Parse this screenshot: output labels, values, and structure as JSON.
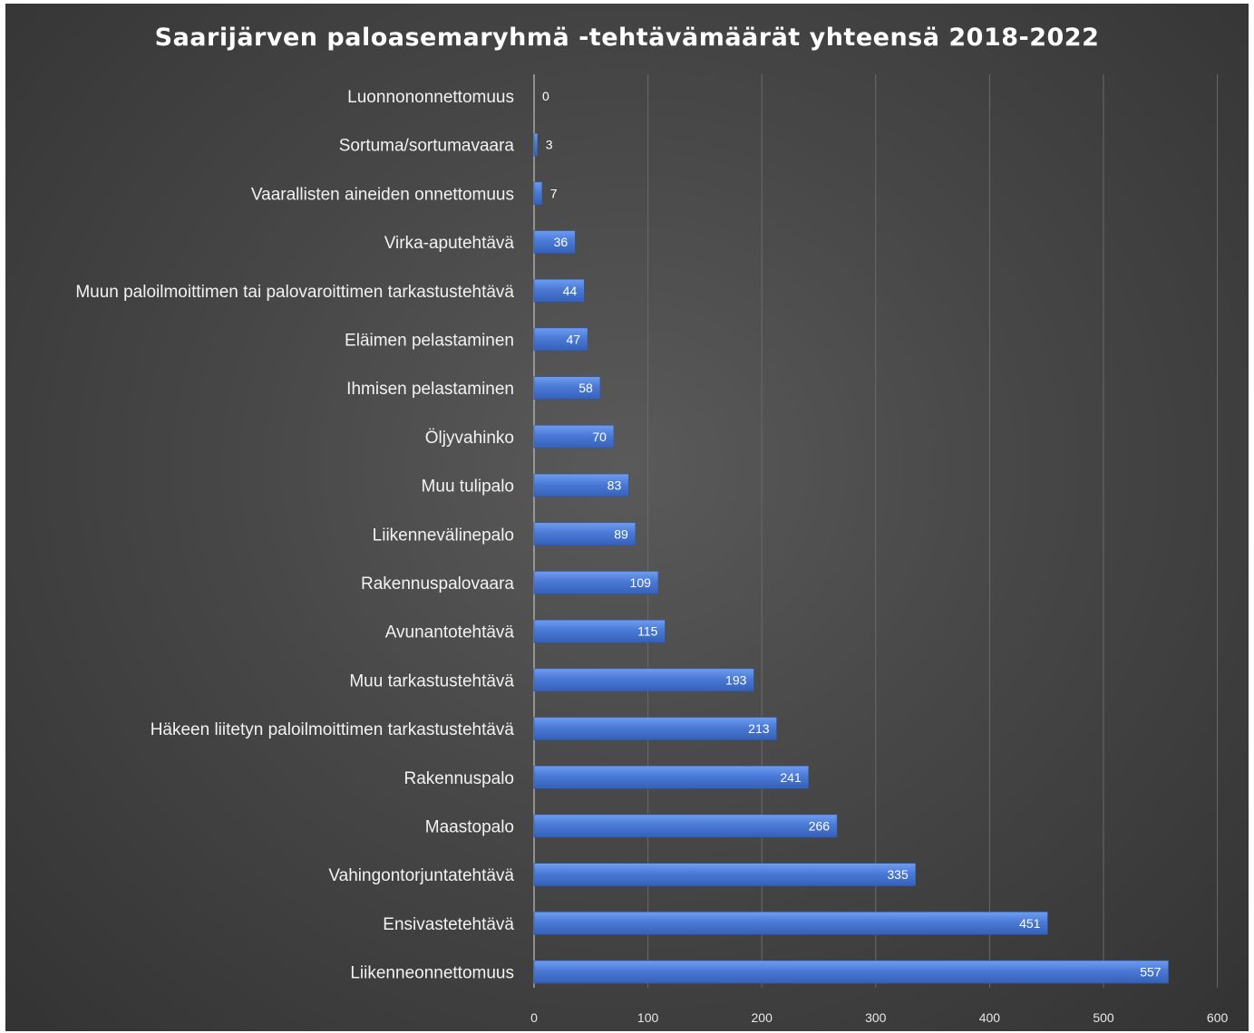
{
  "chart_data": {
    "type": "bar",
    "orientation": "horizontal",
    "title": "Saarijärven paloasemaryhmä -tehtävämäärät yhteensä 2018-2022",
    "categories": [
      "Luonnononnettomuus",
      "Sortuma/sortumavaara",
      "Vaarallisten aineiden onnettomuus",
      "Virka-aputehtävä",
      "Muun paloilmoittimen tai palovaroittimen tarkastustehtävä",
      "Eläimen pelastaminen",
      "Ihmisen pelastaminen",
      "Öljyvahinko",
      "Muu tulipalo",
      "Liikennevälinepalo",
      "Rakennuspalovaara",
      "Avunantotehtävä",
      "Muu tarkastustehtävä",
      "Häkeen liitetyn paloilmoittimen tarkastustehtävä",
      "Rakennuspalo",
      "Maastopalo",
      "Vahingontorjuntatehtävä",
      "Ensivastetehtävä",
      "Liikenneonnettomuus"
    ],
    "values": [
      0,
      3,
      7,
      36,
      44,
      47,
      58,
      70,
      83,
      89,
      109,
      115,
      193,
      213,
      241,
      266,
      335,
      451,
      557
    ],
    "xlim": [
      0,
      600
    ],
    "xticks": [
      0,
      100,
      200,
      300,
      400,
      500,
      600
    ],
    "grid": "vertical",
    "legend": "none",
    "xlabel": "",
    "ylabel": "",
    "colors": {
      "bar": "#4a7ad6",
      "background": "#404040",
      "gridline": "#6a6a6a",
      "text": "#ffffff"
    }
  }
}
